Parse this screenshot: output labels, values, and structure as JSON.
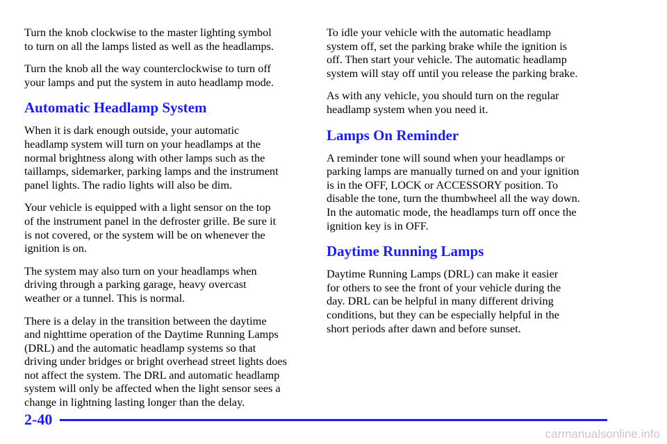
{
  "left_column": [
    {
      "kind": "paragraph",
      "lines": [
        "Turn the knob clockwise to the master lighting symbol",
        "to turn on all the lamps listed as well as the headlamps."
      ]
    },
    {
      "kind": "paragraph",
      "lines": [
        "Turn the knob all the way counterclockwise to turn off",
        "your lamps and put the system in auto headlamp mode."
      ]
    },
    {
      "kind": "heading",
      "lines": [
        "Automatic Headlamp System"
      ]
    },
    {
      "kind": "paragraph",
      "lines": [
        "When it is dark enough outside, your automatic",
        "headlamp system will turn on your headlamps at the",
        "normal brightness along with other lamps such as the",
        "taillamps, sidemarker, parking lamps and the instrument",
        "panel lights. The radio lights will also be dim."
      ]
    },
    {
      "kind": "paragraph",
      "lines": [
        "Your vehicle is equipped with a light sensor on the top",
        "of the instrument panel in the defroster grille. Be sure it",
        "is not covered, or the system will be on whenever the",
        "ignition is on."
      ]
    },
    {
      "kind": "paragraph",
      "lines": [
        "The system may also turn on your headlamps when",
        "driving through a parking garage, heavy overcast",
        "weather or a tunnel. This is normal."
      ]
    },
    {
      "kind": "paragraph",
      "lines": [
        "There is a delay in the transition between the daytime",
        "and nighttime operation of the Daytime Running Lamps",
        "(DRL) and the automatic headlamp systems so that",
        "driving under bridges or bright overhead street lights does",
        "not affect the system. The DRL and automatic headlamp",
        "system will only be affected when the light sensor sees a",
        "change in lightning lasting longer than the delay."
      ]
    }
  ],
  "right_column": [
    {
      "kind": "paragraph",
      "lines": [
        "To idle your vehicle with the automatic headlamp",
        "system off, set the parking brake while the ignition is",
        "off. Then start your vehicle. The automatic headlamp",
        "system will stay off until you release the parking brake."
      ]
    },
    {
      "kind": "paragraph",
      "lines": [
        "As with any vehicle, you should turn on the regular",
        "headlamp system when you need it."
      ]
    },
    {
      "kind": "heading",
      "lines": [
        "Lamps On Reminder"
      ]
    },
    {
      "kind": "paragraph",
      "lines": [
        "A reminder tone will sound when your headlamps or",
        "parking lamps are manually turned on and your ignition",
        "is in the OFF, LOCK or ACCESSORY position. To",
        "disable the tone, turn the thumbwheel all the way down.",
        "In the automatic mode, the headlamps turn off once the",
        "ignition key is in OFF."
      ]
    },
    {
      "kind": "heading",
      "lines": [
        "Daytime Running Lamps"
      ]
    },
    {
      "kind": "paragraph",
      "lines": [
        "Daytime Running Lamps (DRL) can make it easier",
        "for others to see the front of your vehicle during the",
        "day. DRL can be helpful in many different driving",
        "conditions, but they can be especially helpful in the",
        "short periods after dawn and before sunset."
      ]
    }
  ],
  "footer": {
    "page_number": "2-40",
    "watermark": "carmanualsonline.info"
  }
}
